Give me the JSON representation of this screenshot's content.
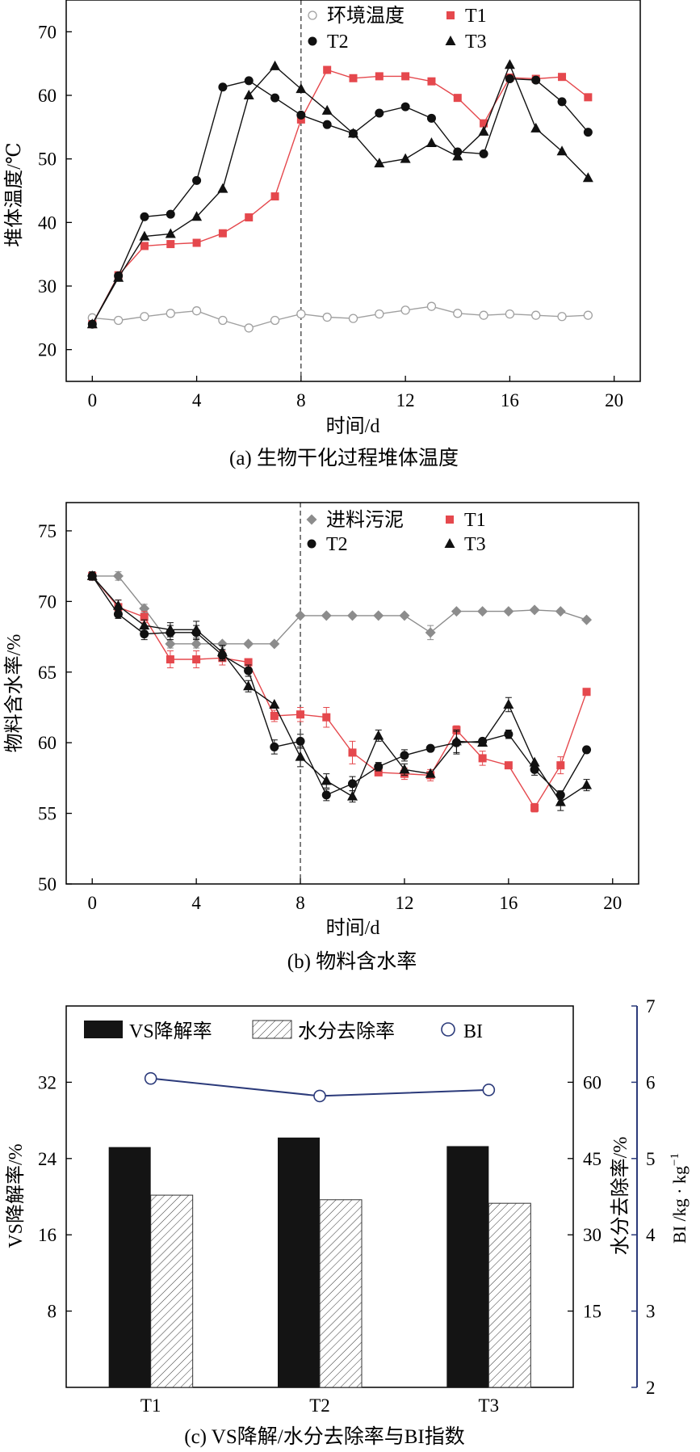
{
  "chart_data": [
    {
      "type": "line",
      "caption": "(a) 生物干化过程堆体温度",
      "xlabel": "时间/d",
      "ylabel": "堆体温度/℃",
      "xlim": [
        -1,
        21
      ],
      "ylim": [
        15,
        75
      ],
      "xticks": [
        0,
        4,
        8,
        12,
        16,
        20
      ],
      "yticks": [
        20,
        30,
        40,
        50,
        60,
        70
      ],
      "grid": false,
      "legend": "top",
      "annotations": [
        {
          "type": "vline",
          "x": 8,
          "style": "dashed"
        }
      ],
      "series": [
        {
          "name": "环境温度",
          "marker": "open-circle",
          "color": "#a0a0a0",
          "x": [
            0,
            1,
            2,
            3,
            4,
            5,
            6,
            7,
            8,
            9,
            10,
            11,
            12,
            13,
            14,
            15,
            16,
            17,
            18,
            19
          ],
          "y": [
            25.0,
            24.6,
            25.2,
            25.7,
            26.1,
            24.6,
            23.4,
            24.6,
            25.6,
            25.1,
            24.9,
            25.6,
            26.2,
            26.8,
            25.7,
            25.4,
            25.6,
            25.4,
            25.2,
            25.4
          ]
        },
        {
          "name": "T1",
          "marker": "square",
          "color": "#e5484d",
          "x": [
            0,
            1,
            2,
            3,
            4,
            5,
            6,
            7,
            8,
            9,
            10,
            11,
            12,
            13,
            14,
            15,
            16,
            17,
            18,
            19
          ],
          "y": [
            24.0,
            31.7,
            36.3,
            36.6,
            36.8,
            38.3,
            40.8,
            44.1,
            56.2,
            64.0,
            62.7,
            63.0,
            63.0,
            62.2,
            59.6,
            55.6,
            62.8,
            62.6,
            62.9,
            59.7
          ]
        },
        {
          "name": "T2",
          "marker": "circle",
          "color": "#111111",
          "x": [
            0,
            1,
            2,
            3,
            4,
            5,
            6,
            7,
            8,
            9,
            10,
            11,
            12,
            13,
            14,
            15,
            16,
            17,
            18,
            19
          ],
          "y": [
            24.0,
            31.6,
            40.9,
            41.3,
            46.6,
            61.3,
            62.3,
            59.6,
            56.9,
            55.4,
            54.0,
            57.2,
            58.2,
            56.4,
            51.1,
            50.8,
            62.6,
            62.4,
            59.0,
            54.2
          ]
        },
        {
          "name": "T3",
          "marker": "triangle",
          "color": "#111111",
          "x": [
            0,
            1,
            2,
            3,
            4,
            5,
            6,
            7,
            8,
            9,
            10,
            11,
            12,
            13,
            14,
            15,
            16,
            17,
            18,
            19
          ],
          "y": [
            24.0,
            31.3,
            37.8,
            38.2,
            40.9,
            45.3,
            60.0,
            64.6,
            61.0,
            57.6,
            54.0,
            49.3,
            50.0,
            52.5,
            50.4,
            54.3,
            64.8,
            54.8,
            51.2,
            47.0
          ]
        }
      ]
    },
    {
      "type": "line",
      "caption": "(b) 物料含水率",
      "xlabel": "时间/d",
      "ylabel": "物料含水率/%",
      "xlim": [
        -1,
        21
      ],
      "ylim": [
        50,
        77
      ],
      "xticks": [
        0,
        4,
        8,
        12,
        16,
        20
      ],
      "yticks": [
        50,
        55,
        60,
        65,
        70,
        75
      ],
      "grid": false,
      "legend": "top",
      "annotations": [
        {
          "type": "vline",
          "x": 8,
          "style": "dashed"
        }
      ],
      "series": [
        {
          "name": "进料污泥",
          "marker": "diamond",
          "color": "#8c8c8c",
          "x": [
            0,
            1,
            2,
            3,
            4,
            5,
            6,
            7,
            8,
            9,
            10,
            11,
            12,
            13,
            14,
            15,
            16,
            17,
            18,
            19
          ],
          "y": [
            71.8,
            71.8,
            69.5,
            67.0,
            67.0,
            67.0,
            67.0,
            67.0,
            69.0,
            69.0,
            69.0,
            69.0,
            69.0,
            67.8,
            69.3,
            69.3,
            69.3,
            69.4,
            69.3,
            68.7
          ],
          "err": [
            0.2,
            0.3,
            0.3,
            0.3,
            0.3,
            0,
            0,
            0,
            0,
            0,
            0,
            0,
            0,
            0.5,
            0,
            0,
            0,
            0,
            0,
            0
          ]
        },
        {
          "name": "T1",
          "marker": "square",
          "color": "#e5484d",
          "x": [
            0,
            1,
            2,
            3,
            4,
            5,
            6,
            7,
            8,
            9,
            10,
            11,
            12,
            13,
            14,
            15,
            16,
            17,
            18,
            19
          ],
          "y": [
            71.8,
            69.6,
            68.9,
            65.9,
            65.9,
            66.0,
            65.7,
            61.9,
            62.0,
            61.8,
            59.3,
            57.9,
            57.8,
            57.7,
            60.9,
            58.9,
            58.4,
            55.4,
            58.4,
            63.6
          ],
          "err": [
            0.3,
            0.5,
            0.4,
            0.6,
            0.6,
            0.5,
            0,
            0.4,
            0.5,
            0.7,
            0.8,
            0,
            0.4,
            0.4,
            0.3,
            0.5,
            0,
            0.3,
            0.6,
            0
          ]
        },
        {
          "name": "T2",
          "marker": "circle",
          "color": "#111111",
          "x": [
            0,
            1,
            2,
            3,
            4,
            5,
            6,
            7,
            8,
            9,
            10,
            11,
            12,
            13,
            14,
            15,
            16,
            17,
            18,
            19
          ],
          "y": [
            71.8,
            69.1,
            67.7,
            67.8,
            67.8,
            66.2,
            65.1,
            59.7,
            60.1,
            56.3,
            57.1,
            58.3,
            59.1,
            59.6,
            60.0,
            60.1,
            60.6,
            58.1,
            56.3,
            59.5
          ],
          "err": [
            0.3,
            0.3,
            0.4,
            0.5,
            0.5,
            0.4,
            0.4,
            0.5,
            0.5,
            0.4,
            0.5,
            0.3,
            0.4,
            0,
            0.8,
            0,
            0.3,
            0.4,
            0.3,
            0
          ]
        },
        {
          "name": "T3",
          "marker": "triangle",
          "color": "#111111",
          "x": [
            0,
            1,
            2,
            3,
            4,
            5,
            6,
            7,
            8,
            9,
            10,
            11,
            12,
            13,
            14,
            15,
            16,
            17,
            18,
            19
          ],
          "y": [
            71.8,
            69.7,
            68.3,
            68.0,
            68.0,
            66.4,
            64.0,
            62.7,
            59.0,
            57.3,
            56.2,
            60.5,
            58.1,
            57.8,
            60.1,
            60.0,
            62.7,
            58.6,
            55.8,
            57.0
          ],
          "err": [
            0.2,
            0.4,
            0.4,
            0.5,
            0.6,
            0.5,
            0.4,
            0,
            0.7,
            0.5,
            0.4,
            0.4,
            0.4,
            0,
            0.8,
            0,
            0.5,
            0,
            0.6,
            0.4
          ]
        }
      ]
    },
    {
      "type": "bar",
      "caption": "(c) VS降解/水分去除率与BI指数",
      "categories": [
        "T1",
        "T2",
        "T3"
      ],
      "ylabel_left": "VS降解率/%",
      "ylabel_right_inner": "水分去除率/%",
      "ylabel_right_outer": "BI /kg · kg",
      "ylabel_right_outer_sup": "−1",
      "ylim_left": [
        0,
        40
      ],
      "yticks_left": [
        8,
        16,
        24,
        32
      ],
      "ylim_right_inner": [
        0,
        75
      ],
      "yticks_right_inner": [
        15,
        30,
        45,
        60
      ],
      "ylim_right_outer": [
        2,
        7
      ],
      "yticks_right_outer": [
        2,
        3,
        4,
        5,
        6,
        7
      ],
      "legend": "top",
      "series": [
        {
          "name": "VS降解率",
          "axis": "left",
          "style": "solid-black",
          "values": [
            25.2,
            26.2,
            25.3
          ]
        },
        {
          "name": "水分去除率",
          "axis": "right_inner",
          "style": "hatched",
          "values": [
            37.8,
            36.9,
            36.2
          ]
        },
        {
          "name": "BI",
          "axis": "right_outer",
          "style": "line-open-circle",
          "color": "#2b3a7a",
          "values": [
            6.05,
            5.82,
            5.9
          ]
        }
      ]
    }
  ]
}
